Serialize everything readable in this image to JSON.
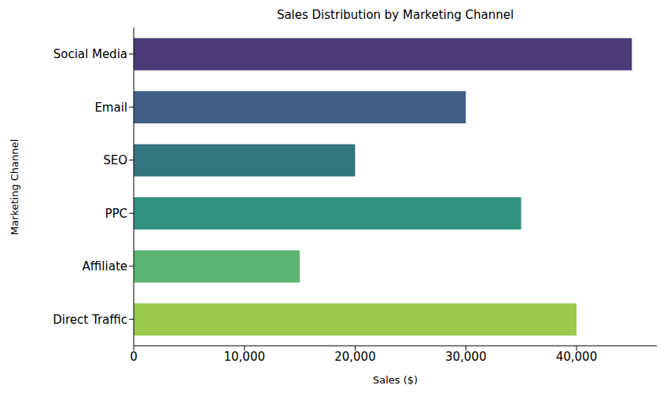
{
  "chart_data": {
    "type": "bar",
    "orientation": "horizontal",
    "title": "Sales Distribution by Marketing Channel",
    "x_label": "Sales ($)",
    "y_label": "Marketing Channel",
    "categories": [
      "Social Media",
      "Email",
      "SEO",
      "PPC",
      "Affiliate",
      "Direct Traffic"
    ],
    "values": [
      45000,
      30000,
      20000,
      35000,
      15000,
      40000
    ],
    "colors": [
      "#4a3a78",
      "#415f87",
      "#33767f",
      "#2f9380",
      "#5bb472",
      "#9bc94c"
    ],
    "xlim": [
      0,
      47250
    ],
    "xticks": [
      0,
      {
        "value": 10000,
        "label": "10,000"
      },
      {
        "value": 20000,
        "label": "20,000"
      },
      {
        "value": 30000,
        "label": "30,000"
      },
      {
        "value": 40000,
        "label": "40,000"
      }
    ],
    "grid": false
  }
}
